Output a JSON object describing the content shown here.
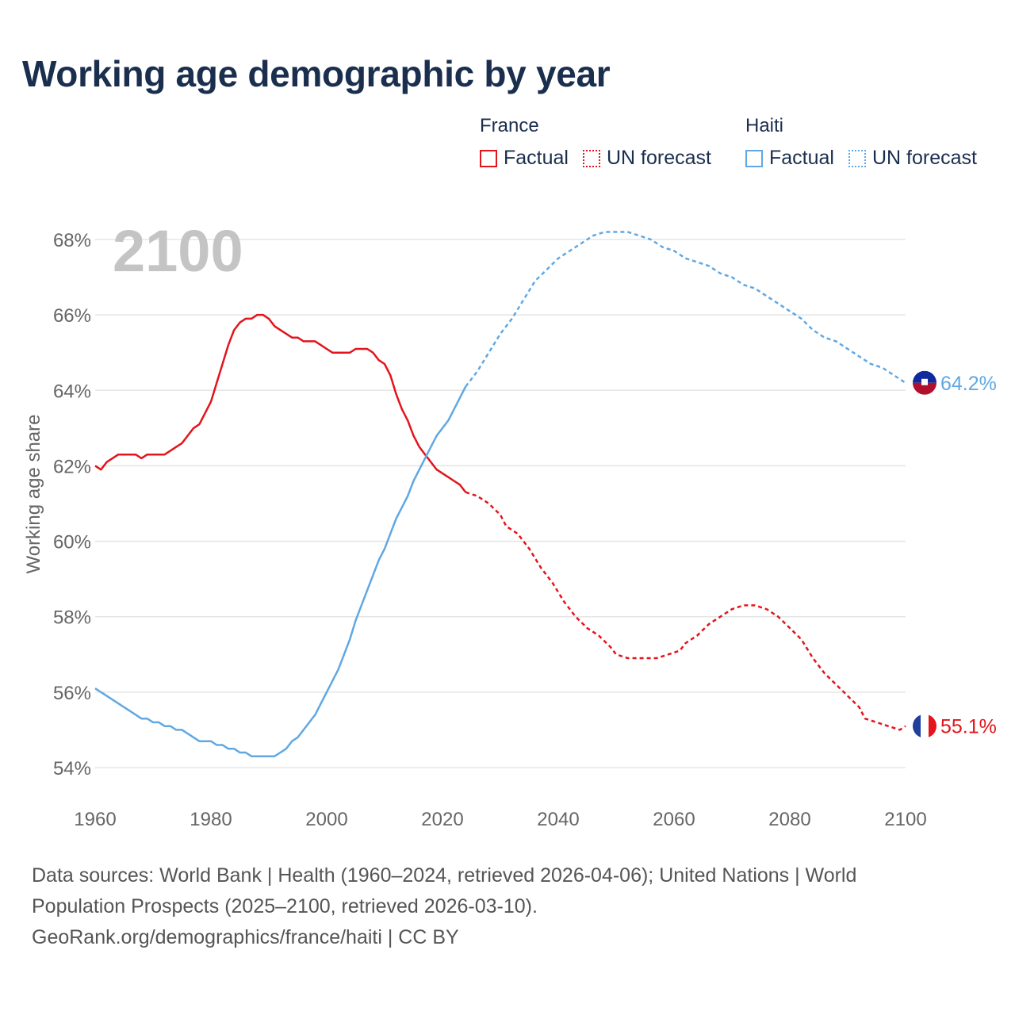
{
  "chart_data": {
    "type": "line",
    "title": "Working age demographic by year",
    "xlabel": "",
    "ylabel": "Working age share",
    "xlim": [
      1960,
      2100
    ],
    "ylim": [
      54,
      68
    ],
    "x_ticks": [
      1960,
      1980,
      2000,
      2020,
      2040,
      2060,
      2080,
      2100
    ],
    "y_ticks": [
      54,
      56,
      58,
      60,
      62,
      64,
      66,
      68
    ],
    "y_tick_labels": [
      "54%",
      "56%",
      "58%",
      "60%",
      "62%",
      "64%",
      "66%",
      "68%"
    ],
    "x_tick_labels": [
      "1960",
      "1980",
      "2000",
      "2020",
      "2040",
      "2060",
      "2080",
      "2100"
    ],
    "year_watermark": "2100",
    "legend": {
      "groups": [
        {
          "name": "France",
          "items": [
            "Factual",
            "UN forecast"
          ]
        },
        {
          "name": "Haiti",
          "items": [
            "Factual",
            "UN forecast"
          ]
        }
      ]
    },
    "series": [
      {
        "name": "France",
        "color": "#e3141b",
        "end_label": "55.1%",
        "factual": [
          [
            1960,
            62.0
          ],
          [
            1961,
            61.9
          ],
          [
            1962,
            62.1
          ],
          [
            1963,
            62.2
          ],
          [
            1964,
            62.3
          ],
          [
            1965,
            62.3
          ],
          [
            1966,
            62.3
          ],
          [
            1967,
            62.3
          ],
          [
            1968,
            62.2
          ],
          [
            1969,
            62.3
          ],
          [
            1970,
            62.3
          ],
          [
            1971,
            62.3
          ],
          [
            1972,
            62.3
          ],
          [
            1973,
            62.4
          ],
          [
            1974,
            62.5
          ],
          [
            1975,
            62.6
          ],
          [
            1976,
            62.8
          ],
          [
            1977,
            63.0
          ],
          [
            1978,
            63.1
          ],
          [
            1979,
            63.4
          ],
          [
            1980,
            63.7
          ],
          [
            1981,
            64.2
          ],
          [
            1982,
            64.7
          ],
          [
            1983,
            65.2
          ],
          [
            1984,
            65.6
          ],
          [
            1985,
            65.8
          ],
          [
            1986,
            65.9
          ],
          [
            1987,
            65.9
          ],
          [
            1988,
            66.0
          ],
          [
            1989,
            66.0
          ],
          [
            1990,
            65.9
          ],
          [
            1991,
            65.7
          ],
          [
            1992,
            65.6
          ],
          [
            1993,
            65.5
          ],
          [
            1994,
            65.4
          ],
          [
            1995,
            65.4
          ],
          [
            1996,
            65.3
          ],
          [
            1997,
            65.3
          ],
          [
            1998,
            65.3
          ],
          [
            1999,
            65.2
          ],
          [
            2000,
            65.1
          ],
          [
            2001,
            65.0
          ],
          [
            2002,
            65.0
          ],
          [
            2003,
            65.0
          ],
          [
            2004,
            65.0
          ],
          [
            2005,
            65.1
          ],
          [
            2006,
            65.1
          ],
          [
            2007,
            65.1
          ],
          [
            2008,
            65.0
          ],
          [
            2009,
            64.8
          ],
          [
            2010,
            64.7
          ],
          [
            2011,
            64.4
          ],
          [
            2012,
            63.9
          ],
          [
            2013,
            63.5
          ],
          [
            2014,
            63.2
          ],
          [
            2015,
            62.8
          ],
          [
            2016,
            62.5
          ],
          [
            2017,
            62.3
          ],
          [
            2018,
            62.1
          ],
          [
            2019,
            61.9
          ],
          [
            2020,
            61.8
          ],
          [
            2021,
            61.7
          ],
          [
            2022,
            61.6
          ],
          [
            2023,
            61.5
          ],
          [
            2024,
            61.3
          ]
        ],
        "forecast": [
          [
            2024,
            61.3
          ],
          [
            2026,
            61.2
          ],
          [
            2028,
            61.0
          ],
          [
            2030,
            60.7
          ],
          [
            2031,
            60.4
          ],
          [
            2033,
            60.2
          ],
          [
            2035,
            59.8
          ],
          [
            2037,
            59.3
          ],
          [
            2039,
            58.9
          ],
          [
            2041,
            58.4
          ],
          [
            2043,
            58.0
          ],
          [
            2045,
            57.7
          ],
          [
            2047,
            57.5
          ],
          [
            2049,
            57.2
          ],
          [
            2050,
            57.0
          ],
          [
            2052,
            56.9
          ],
          [
            2055,
            56.9
          ],
          [
            2057,
            56.9
          ],
          [
            2059,
            57.0
          ],
          [
            2061,
            57.1
          ],
          [
            2062,
            57.3
          ],
          [
            2064,
            57.5
          ],
          [
            2066,
            57.8
          ],
          [
            2068,
            58.0
          ],
          [
            2070,
            58.2
          ],
          [
            2072,
            58.3
          ],
          [
            2074,
            58.3
          ],
          [
            2076,
            58.2
          ],
          [
            2078,
            58.0
          ],
          [
            2080,
            57.7
          ],
          [
            2082,
            57.4
          ],
          [
            2084,
            56.9
          ],
          [
            2086,
            56.5
          ],
          [
            2088,
            56.2
          ],
          [
            2090,
            55.9
          ],
          [
            2092,
            55.6
          ],
          [
            2093,
            55.3
          ],
          [
            2095,
            55.2
          ],
          [
            2097,
            55.1
          ],
          [
            2099,
            55.0
          ],
          [
            2100,
            55.1
          ]
        ]
      },
      {
        "name": "Haiti",
        "color": "#60a8e3",
        "end_label": "64.2%",
        "factual": [
          [
            1960,
            56.1
          ],
          [
            1962,
            55.9
          ],
          [
            1964,
            55.7
          ],
          [
            1966,
            55.5
          ],
          [
            1968,
            55.3
          ],
          [
            1969,
            55.3
          ],
          [
            1970,
            55.2
          ],
          [
            1971,
            55.2
          ],
          [
            1972,
            55.1
          ],
          [
            1973,
            55.1
          ],
          [
            1974,
            55.0
          ],
          [
            1975,
            55.0
          ],
          [
            1976,
            54.9
          ],
          [
            1977,
            54.8
          ],
          [
            1978,
            54.7
          ],
          [
            1979,
            54.7
          ],
          [
            1980,
            54.7
          ],
          [
            1981,
            54.6
          ],
          [
            1982,
            54.6
          ],
          [
            1983,
            54.5
          ],
          [
            1984,
            54.5
          ],
          [
            1985,
            54.4
          ],
          [
            1986,
            54.4
          ],
          [
            1987,
            54.3
          ],
          [
            1988,
            54.3
          ],
          [
            1989,
            54.3
          ],
          [
            1990,
            54.3
          ],
          [
            1991,
            54.3
          ],
          [
            1992,
            54.4
          ],
          [
            1993,
            54.5
          ],
          [
            1994,
            54.7
          ],
          [
            1995,
            54.8
          ],
          [
            1996,
            55.0
          ],
          [
            1997,
            55.2
          ],
          [
            1998,
            55.4
          ],
          [
            1999,
            55.7
          ],
          [
            2000,
            56.0
          ],
          [
            2001,
            56.3
          ],
          [
            2002,
            56.6
          ],
          [
            2003,
            57.0
          ],
          [
            2004,
            57.4
          ],
          [
            2005,
            57.9
          ],
          [
            2006,
            58.3
          ],
          [
            2007,
            58.7
          ],
          [
            2008,
            59.1
          ],
          [
            2009,
            59.5
          ],
          [
            2010,
            59.8
          ],
          [
            2011,
            60.2
          ],
          [
            2012,
            60.6
          ],
          [
            2013,
            60.9
          ],
          [
            2014,
            61.2
          ],
          [
            2015,
            61.6
          ],
          [
            2016,
            61.9
          ],
          [
            2017,
            62.2
          ],
          [
            2018,
            62.5
          ],
          [
            2019,
            62.8
          ],
          [
            2020,
            63.0
          ],
          [
            2021,
            63.2
          ],
          [
            2022,
            63.5
          ],
          [
            2023,
            63.8
          ],
          [
            2024,
            64.1
          ]
        ],
        "forecast": [
          [
            2024,
            64.1
          ],
          [
            2026,
            64.5
          ],
          [
            2028,
            65.0
          ],
          [
            2030,
            65.5
          ],
          [
            2032,
            65.9
          ],
          [
            2034,
            66.4
          ],
          [
            2036,
            66.9
          ],
          [
            2038,
            67.2
          ],
          [
            2040,
            67.5
          ],
          [
            2042,
            67.7
          ],
          [
            2044,
            67.9
          ],
          [
            2046,
            68.1
          ],
          [
            2048,
            68.2
          ],
          [
            2052,
            68.2
          ],
          [
            2054,
            68.1
          ],
          [
            2056,
            68.0
          ],
          [
            2058,
            67.8
          ],
          [
            2060,
            67.7
          ],
          [
            2062,
            67.5
          ],
          [
            2064,
            67.4
          ],
          [
            2066,
            67.3
          ],
          [
            2068,
            67.1
          ],
          [
            2070,
            67.0
          ],
          [
            2072,
            66.8
          ],
          [
            2074,
            66.7
          ],
          [
            2076,
            66.5
          ],
          [
            2078,
            66.3
          ],
          [
            2080,
            66.1
          ],
          [
            2082,
            65.9
          ],
          [
            2084,
            65.6
          ],
          [
            2086,
            65.4
          ],
          [
            2088,
            65.3
          ],
          [
            2090,
            65.1
          ],
          [
            2092,
            64.9
          ],
          [
            2094,
            64.7
          ],
          [
            2096,
            64.6
          ],
          [
            2098,
            64.4
          ],
          [
            2100,
            64.2
          ]
        ]
      }
    ]
  },
  "footer": {
    "line1": "Data sources: World Bank | Health (1960–2024, retrieved 2026-04-06); United Nations | World",
    "line2": "Population Prospects (2025–2100, retrieved 2026-03-10).",
    "line3": "GeoRank.org/demographics/france/haiti | CC BY"
  },
  "colors": {
    "france": "#e3141b",
    "haiti": "#60a8e3",
    "title": "#1a2e4d",
    "grid": "#e5e5e5",
    "tick_text": "#666666",
    "watermark": "#c4c4c4"
  }
}
